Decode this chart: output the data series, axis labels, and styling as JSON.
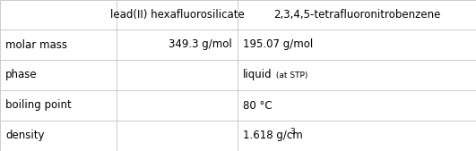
{
  "col_headers": [
    "",
    "lead(II) hexafluorosilicate",
    "2,3,4,5-tetrafluoronitrobenzene"
  ],
  "rows": [
    [
      "molar mass",
      "349.3 g/mol",
      "195.07 g/mol"
    ],
    [
      "phase",
      "",
      "liquid_stp"
    ],
    [
      "boiling point",
      "",
      "80 °C"
    ],
    [
      "density",
      "",
      "1.618 g/cm^3"
    ]
  ],
  "bg_color": "#ffffff",
  "border_color": "#cccccc",
  "text_color": "#000000",
  "header_fontsize": 8.5,
  "cell_fontsize": 8.5,
  "small_fontsize": 6.5,
  "fig_width": 5.31,
  "fig_height": 1.69
}
